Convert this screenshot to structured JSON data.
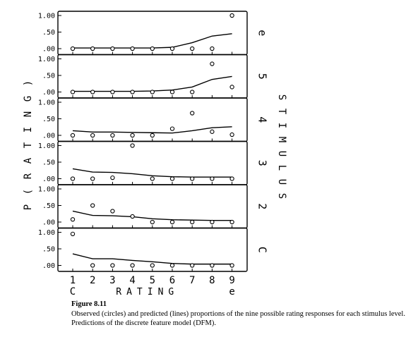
{
  "figure": {
    "label": "Figure 8.11",
    "caption": "Observed (circles) and predicted (lines) proportions of the nine possible rating responses for each stimulus level. Predictions of the discrete feature model (DFM)."
  },
  "chart_data": {
    "type": "line",
    "ylabel_chars": [
      "P",
      "(",
      "R",
      "A",
      "T",
      "I",
      "N",
      "G",
      ")"
    ],
    "right_axis_chars": [
      "S",
      "T",
      "I",
      "M",
      "U",
      "L",
      "U",
      "S"
    ],
    "xlabel": "RATING",
    "x": [
      1,
      2,
      3,
      4,
      5,
      6,
      7,
      8,
      9
    ],
    "x_tick_labels": [
      "1",
      "2",
      "3",
      "4",
      "5",
      "6",
      "7",
      "8",
      "9"
    ],
    "x_end_labels": [
      "C",
      "e"
    ],
    "ylim": [
      0,
      1
    ],
    "y_tick_labels": [
      "1.00",
      ".50",
      ".00"
    ],
    "panels": [
      {
        "label": "e",
        "observed": [
          0.0,
          0.0,
          0.0,
          0.0,
          0.0,
          0.0,
          0.0,
          0.0,
          1.0
        ],
        "predicted": [
          0.02,
          0.02,
          0.02,
          0.02,
          0.02,
          0.04,
          0.18,
          0.38,
          0.45
        ]
      },
      {
        "label": "5",
        "observed": [
          0.0,
          0.0,
          0.0,
          0.0,
          0.0,
          0.0,
          0.0,
          0.85,
          0.15
        ],
        "predicted": [
          0.02,
          0.02,
          0.02,
          0.02,
          0.03,
          0.06,
          0.15,
          0.38,
          0.47
        ]
      },
      {
        "label": "4",
        "observed": [
          0.0,
          0.0,
          0.0,
          0.0,
          0.0,
          0.2,
          0.67,
          0.11,
          0.02
        ],
        "predicted": [
          0.14,
          0.1,
          0.1,
          0.09,
          0.08,
          0.07,
          0.14,
          0.23,
          0.26
        ]
      },
      {
        "label": "3",
        "observed": [
          0.0,
          0.0,
          0.03,
          1.0,
          0.0,
          0.0,
          0.0,
          0.0,
          0.0
        ],
        "predicted": [
          0.3,
          0.2,
          0.19,
          0.15,
          0.09,
          0.06,
          0.05,
          0.05,
          0.05
        ]
      },
      {
        "label": "2",
        "observed": [
          0.08,
          0.5,
          0.33,
          0.17,
          0.0,
          0.0,
          0.0,
          0.0,
          0.0
        ],
        "predicted": [
          0.33,
          0.2,
          0.19,
          0.16,
          0.1,
          0.07,
          0.06,
          0.05,
          0.05
        ]
      },
      {
        "label": "C",
        "observed": [
          0.95,
          0.0,
          0.0,
          0.0,
          0.0,
          0.0,
          0.0,
          0.0,
          0.0
        ],
        "predicted": [
          0.35,
          0.2,
          0.2,
          0.15,
          0.11,
          0.06,
          0.04,
          0.04,
          0.04
        ]
      }
    ]
  }
}
